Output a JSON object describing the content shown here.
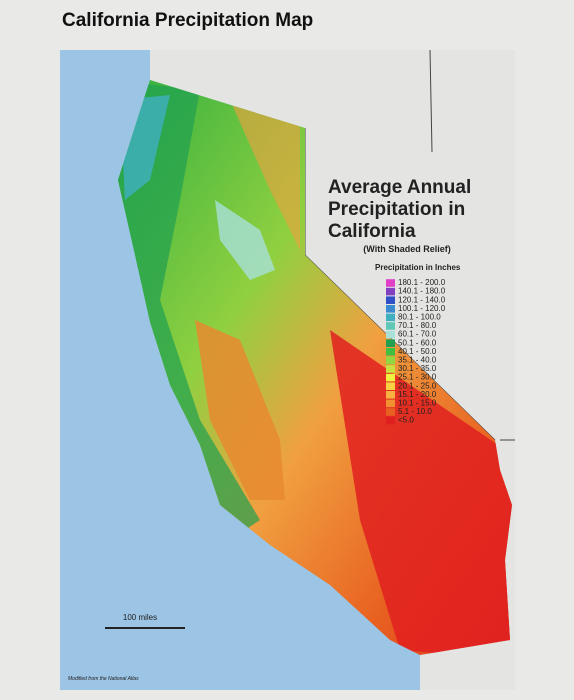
{
  "header": {
    "title": "California Precipitation Map"
  },
  "map": {
    "title_lines": [
      "Average Annual",
      "Precipitation in",
      "California"
    ],
    "subtitle": "(With Shaded Relief)",
    "legend": {
      "title": "Precipitation in Inches",
      "items": [
        {
          "label": "180.1 - 200.0",
          "color": "#e040c8"
        },
        {
          "label": "140.1 - 180.0",
          "color": "#8040c0"
        },
        {
          "label": "120.1 - 140.0",
          "color": "#3050c8"
        },
        {
          "label": "100.1 - 120.0",
          "color": "#3a8ad0"
        },
        {
          "label": "80.1 - 100.0",
          "color": "#40b0c0"
        },
        {
          "label": "70.1 - 80.0",
          "color": "#60c8b8"
        },
        {
          "label": "60.1 - 70.0",
          "color": "#a8e0d8"
        },
        {
          "label": "50.1 - 60.0",
          "color": "#20a050"
        },
        {
          "label": "40.1 - 50.0",
          "color": "#40c040"
        },
        {
          "label": "35.1 - 40.0",
          "color": "#90d840"
        },
        {
          "label": "30.1 - 35.0",
          "color": "#c8e040"
        },
        {
          "label": "25.1 - 30.0",
          "color": "#f0f040"
        },
        {
          "label": "20.1 - 25.0",
          "color": "#f8d040"
        },
        {
          "label": "15.1 - 20.0",
          "color": "#f8b040"
        },
        {
          "label": "10.1 - 15.0",
          "color": "#f09030"
        },
        {
          "label": "5.1 - 10.0",
          "color": "#e86020"
        },
        {
          "label": "<5.0",
          "color": "#e02020"
        }
      ]
    },
    "scale": "100 miles",
    "credit": "Modified from the National Atlas"
  }
}
